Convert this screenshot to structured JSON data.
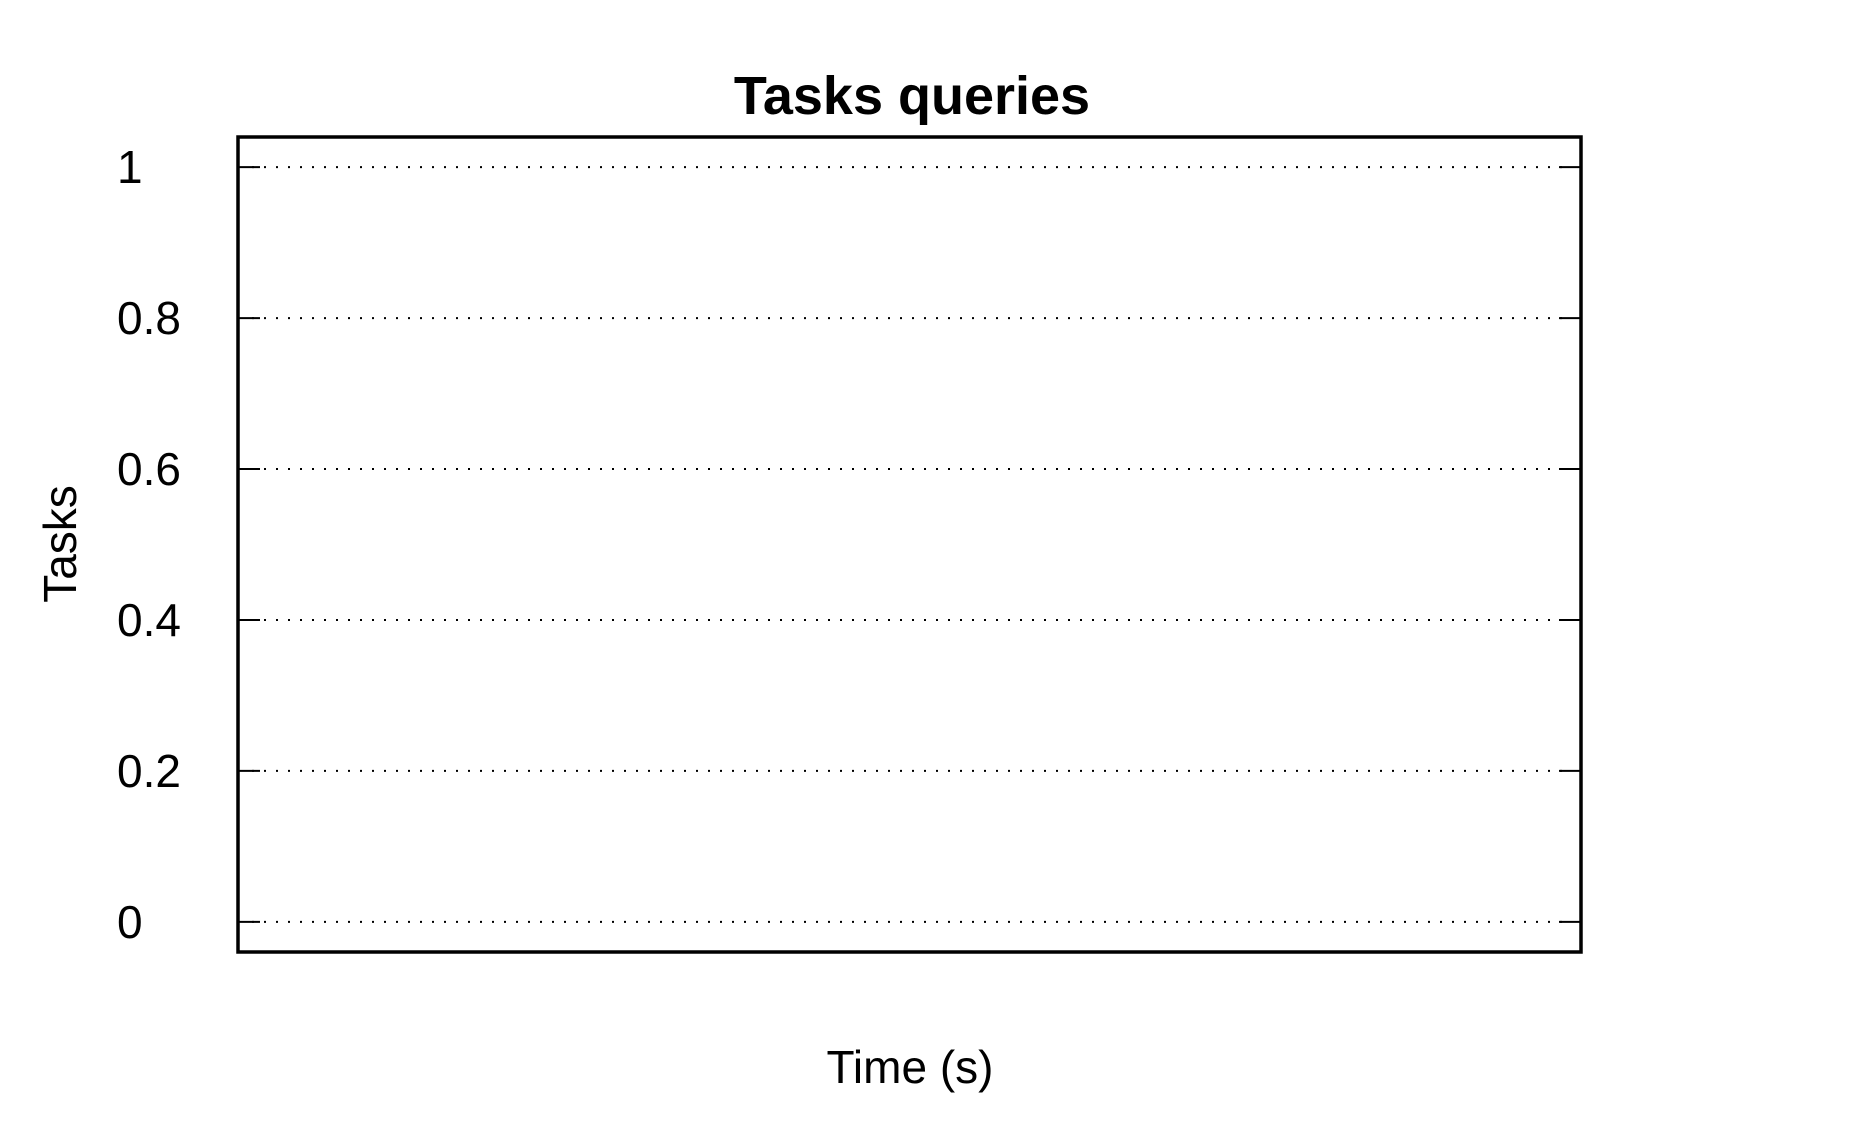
{
  "chart_data": {
    "type": "line",
    "title": "Tasks queries",
    "xlabel": "Time (s)",
    "ylabel": "Tasks",
    "ylim": [
      -0.04,
      1.04
    ],
    "y_ticks": [
      0,
      0.2,
      0.4,
      0.6,
      0.8,
      1
    ],
    "y_tick_labels": [
      "0",
      "0.2",
      "0.4",
      "0.6",
      "0.8",
      "1"
    ],
    "x_ticks": [],
    "grid": "horizontal-dotted",
    "series": [],
    "frame_color": "#000000"
  }
}
